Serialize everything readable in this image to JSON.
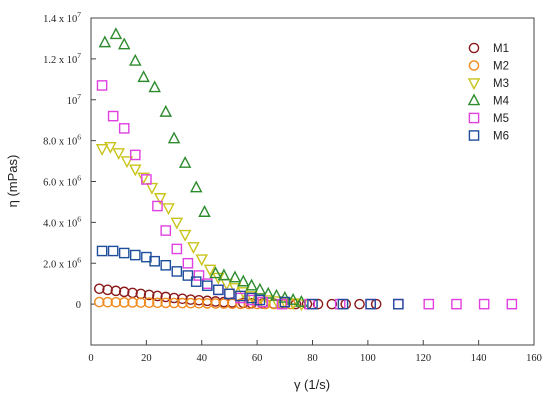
{
  "chart_data": {
    "type": "scatter",
    "title": "",
    "xlabel": "γ (1/s)",
    "ylabel": "η (mPas)",
    "xlim": [
      0,
      160
    ],
    "ylim": [
      -2000000,
      14000000
    ],
    "x_ticks": [
      0,
      20,
      40,
      60,
      80,
      100,
      120,
      140,
      160
    ],
    "y_ticks": [
      {
        "value": 0,
        "mantissa": "0",
        "exp": ""
      },
      {
        "value": 2000000,
        "mantissa": "2.0 x 10",
        "exp": "6"
      },
      {
        "value": 4000000,
        "mantissa": "4.0 x 10",
        "exp": "6"
      },
      {
        "value": 6000000,
        "mantissa": "6.0 x 10",
        "exp": "6"
      },
      {
        "value": 8000000,
        "mantissa": "8.0 x 10",
        "exp": "6"
      },
      {
        "value": 10000000,
        "mantissa": "10",
        "exp": "7"
      },
      {
        "value": 12000000,
        "mantissa": "1.2 x 10",
        "exp": "7"
      },
      {
        "value": 14000000,
        "mantissa": "1.4 x 10",
        "exp": "7"
      }
    ],
    "grid": false,
    "legend_position": "top-right",
    "series": [
      {
        "name": "M1",
        "marker": "circle",
        "color": "#8b1a1a",
        "x": [
          3,
          6,
          9,
          12,
          15,
          18,
          21,
          24,
          27,
          30,
          33,
          36,
          39,
          42,
          45,
          48,
          51,
          55,
          58,
          62,
          66,
          70,
          74,
          78,
          82,
          87,
          92,
          97,
          103
        ],
        "y": [
          750000,
          700000,
          650000,
          600000,
          550000,
          500000,
          450000,
          400000,
          350000,
          300000,
          260000,
          220000,
          190000,
          160000,
          130000,
          100000,
          80000,
          60000,
          40000,
          30000,
          20000,
          10000,
          5000,
          2000,
          1000,
          500,
          200,
          100,
          0
        ]
      },
      {
        "name": "M2",
        "marker": "circle",
        "color": "#f08a1c",
        "x": [
          3,
          6,
          9,
          12,
          15,
          18,
          21,
          24,
          27,
          30,
          33,
          36,
          39,
          42,
          45,
          48,
          51,
          54,
          57,
          60,
          63,
          66,
          69,
          72
        ],
        "y": [
          100000,
          95000,
          90000,
          85000,
          80000,
          75000,
          70000,
          65000,
          60000,
          55000,
          50000,
          45000,
          40000,
          35000,
          30000,
          25000,
          20000,
          15000,
          10000,
          8000,
          5000,
          3000,
          1000,
          0
        ]
      },
      {
        "name": "M3",
        "marker": "triangle-down",
        "color": "#c9c41a",
        "x": [
          4,
          7,
          10,
          13,
          16,
          19,
          22,
          25,
          28,
          31,
          34,
          37,
          40,
          43,
          46,
          49,
          52,
          55,
          58,
          61,
          64,
          67,
          70,
          73,
          76
        ],
        "y": [
          7600000,
          7700000,
          7400000,
          7000000,
          6600000,
          6200000,
          5700000,
          5200000,
          4700000,
          4000000,
          3400000,
          2800000,
          2200000,
          1700000,
          1300000,
          1000000,
          800000,
          600000,
          400000,
          300000,
          200000,
          150000,
          100000,
          50000,
          0
        ]
      },
      {
        "name": "M4",
        "marker": "triangle-up",
        "color": "#2e8b2e",
        "x": [
          5,
          9,
          12,
          16,
          19,
          23,
          27,
          30,
          34,
          38,
          41,
          45,
          48,
          52,
          55,
          58,
          61,
          64,
          67,
          70,
          73,
          76
        ],
        "y": [
          12800000,
          13200000,
          12700000,
          11900000,
          11100000,
          10600000,
          9400000,
          8100000,
          6900000,
          5700000,
          4500000,
          1500000,
          1400000,
          1300000,
          1100000,
          900000,
          700000,
          500000,
          400000,
          300000,
          200000,
          100000
        ]
      },
      {
        "name": "M5",
        "marker": "square",
        "color": "#e040e0",
        "x": [
          4,
          8,
          12,
          16,
          20,
          24,
          27,
          31,
          35,
          39,
          42,
          46,
          50,
          54,
          58,
          62,
          69,
          79,
          90,
          101,
          111,
          122,
          132,
          142,
          152
        ],
        "y": [
          10700000,
          9200000,
          8600000,
          7300000,
          6100000,
          4800000,
          3600000,
          2700000,
          2000000,
          1400000,
          1000000,
          700000,
          500000,
          300000,
          200000,
          100000,
          0,
          0,
          0,
          0,
          0,
          0,
          0,
          0,
          0
        ]
      },
      {
        "name": "M6",
        "marker": "square",
        "color": "#1f4f9c",
        "x": [
          4,
          8,
          12,
          16,
          20,
          23,
          27,
          31,
          35,
          38,
          42,
          46,
          50,
          54,
          58,
          61,
          70,
          80,
          91,
          101,
          111
        ],
        "y": [
          2600000,
          2600000,
          2500000,
          2400000,
          2300000,
          2100000,
          1900000,
          1600000,
          1400000,
          1100000,
          900000,
          700000,
          500000,
          400000,
          300000,
          200000,
          100000,
          0,
          0,
          0,
          0
        ]
      }
    ]
  }
}
